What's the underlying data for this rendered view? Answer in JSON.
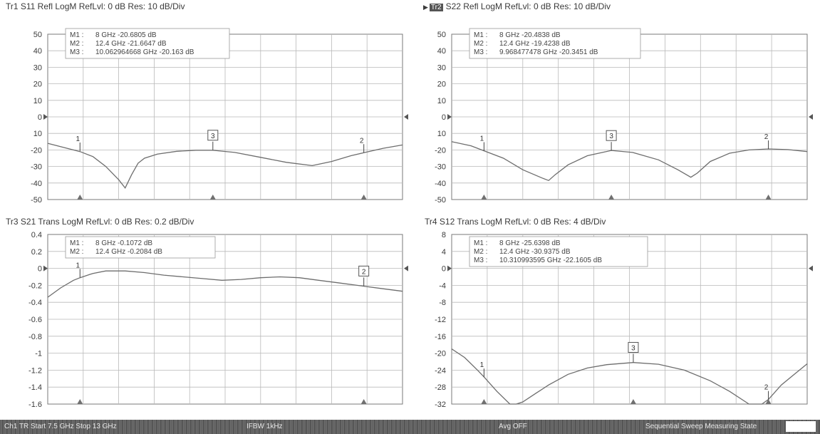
{
  "panels": [
    {
      "id": "tr1",
      "title": "Tr1  S11 Refl LogM RefLvl: 0  dB Res: 10  dB/Div",
      "badge": "",
      "yticks": [
        "50",
        "40",
        "30",
        "20",
        "10",
        "0",
        "10",
        "-20",
        "-30",
        "-40",
        "-50"
      ],
      "markers_readout": [
        {
          "name": "M1",
          "text": "8 GHz -20.6805 dB"
        },
        {
          "name": "M2",
          "text": "12.4 GHz -21.6647 dB"
        },
        {
          "name": "M3",
          "text": "10.062964668 GHz -20.163 dB"
        }
      ]
    },
    {
      "id": "tr2",
      "title": "S22 Refl LogM RefLvl: 0  dB Res: 10  dB/Div",
      "badge": "Tr2",
      "yticks": [
        "50",
        "40",
        "30",
        "20",
        "10",
        "0",
        "10",
        "-20",
        "-30",
        "-40",
        "-50"
      ],
      "markers_readout": [
        {
          "name": "M1",
          "text": "8 GHz -20.4838 dB"
        },
        {
          "name": "M2",
          "text": "12.4 GHz -19.4238 dB"
        },
        {
          "name": "M3",
          "text": "9.968477478 GHz -20.3451 dB"
        }
      ]
    },
    {
      "id": "tr3",
      "title": "Tr3  S21 Trans LogM RefLvl: 0  dB Res: 0.2  dB/Div",
      "badge": "",
      "yticks": [
        "0.4",
        "0.2",
        "0",
        "-0.2",
        "-0.4",
        "-0.6",
        "-0.8",
        "-1",
        "-1.2",
        "-1.4",
        "-1.6"
      ],
      "markers_readout": [
        {
          "name": "M1",
          "text": "8 GHz -0.1072 dB"
        },
        {
          "name": "M2",
          "text": "12.4 GHz -0.2084 dB"
        }
      ]
    },
    {
      "id": "tr4",
      "title": "Tr4  S12 Trans LogM RefLvl: 0  dB Res: 4  dB/Div",
      "badge": "",
      "yticks": [
        "8",
        "4",
        "0",
        "-4",
        "-8",
        "-12",
        "-16",
        "-20",
        "-24",
        "-28",
        "-32"
      ],
      "markers_readout": [
        {
          "name": "M1",
          "text": "8 GHz -25.6398 dB"
        },
        {
          "name": "M2",
          "text": "12.4 GHz -30.9375 dB"
        },
        {
          "name": "M3",
          "text": "10.310993595 GHz -22.1605 dB"
        }
      ]
    }
  ],
  "chart_data": [
    {
      "type": "line",
      "title": "Tr1  S11 Refl LogM RefLvl: 0  dB Res: 10  dB/Div",
      "xlim": [
        7.5,
        13
      ],
      "ylim": [
        -50,
        50
      ],
      "grid": true,
      "series": [
        {
          "x": [
            7.5,
            7.8,
            8,
            8.2,
            8.4,
            8.6,
            8.7,
            8.8,
            8.9,
            9.0,
            9.2,
            9.5,
            9.8,
            10.06,
            10.4,
            10.8,
            11.2,
            11.6,
            11.9,
            12.2,
            12.4,
            12.7,
            13
          ],
          "y": [
            -16,
            -19,
            -21,
            -24,
            -30,
            -38,
            -43,
            -35,
            -28,
            -25,
            -22.5,
            -20.8,
            -20.2,
            -20.2,
            -21.5,
            -24.5,
            -27.5,
            -29.5,
            -27,
            -23.5,
            -21.7,
            -19,
            -17
          ]
        }
      ],
      "markers": [
        {
          "label": "1",
          "x": 8,
          "y": -20.68
        },
        {
          "label": "2",
          "x": 12.4,
          "y": -21.66
        },
        {
          "label": "3",
          "x": 10.06,
          "y": -20.16
        }
      ],
      "stimulus_markers_x": [
        8,
        10.06,
        12.4
      ]
    },
    {
      "type": "line",
      "title": "S22 Refl LogM RefLvl: 0  dB Res: 10  dB/Div",
      "xlim": [
        7.5,
        13
      ],
      "ylim": [
        -50,
        50
      ],
      "grid": true,
      "series": [
        {
          "x": [
            7.5,
            7.8,
            8,
            8.3,
            8.6,
            8.9,
            9.0,
            9.1,
            9.3,
            9.6,
            9.97,
            10.3,
            10.7,
            11.0,
            11.2,
            11.3,
            11.5,
            11.8,
            12.1,
            12.4,
            12.7,
            13
          ],
          "y": [
            -15,
            -17.5,
            -20.5,
            -25,
            -32,
            -37,
            -38.5,
            -35,
            -29,
            -23.5,
            -20.3,
            -21.5,
            -26,
            -32,
            -36.5,
            -34,
            -27,
            -22,
            -20,
            -19.4,
            -19.8,
            -21
          ]
        }
      ],
      "markers": [
        {
          "label": "1",
          "x": 8,
          "y": -20.48
        },
        {
          "label": "2",
          "x": 12.4,
          "y": -19.42
        },
        {
          "label": "3",
          "x": 9.97,
          "y": -20.35
        }
      ],
      "stimulus_markers_x": [
        8,
        9.97,
        12.4
      ]
    },
    {
      "type": "line",
      "title": "Tr3  S21 Trans LogM RefLvl: 0  dB Res: 0.2  dB/Div",
      "xlim": [
        7.5,
        13
      ],
      "ylim": [
        -1.6,
        0.4
      ],
      "grid": true,
      "series": [
        {
          "x": [
            7.5,
            7.7,
            7.9,
            8,
            8.2,
            8.4,
            8.7,
            9.0,
            9.3,
            9.6,
            9.9,
            10.2,
            10.5,
            10.8,
            11.1,
            11.4,
            11.7,
            12.0,
            12.4,
            12.7,
            13
          ],
          "y": [
            -0.34,
            -0.23,
            -0.14,
            -0.11,
            -0.06,
            -0.03,
            -0.03,
            -0.05,
            -0.08,
            -0.1,
            -0.12,
            -0.14,
            -0.13,
            -0.11,
            -0.1,
            -0.11,
            -0.14,
            -0.17,
            -0.21,
            -0.24,
            -0.27
          ]
        }
      ],
      "markers": [
        {
          "label": "1",
          "x": 8,
          "y": -0.107
        },
        {
          "label": "2",
          "x": 12.4,
          "y": -0.208
        }
      ],
      "stimulus_markers_x": [
        8,
        12.4
      ]
    },
    {
      "type": "line",
      "title": "Tr4  S12 Trans LogM RefLvl: 0  dB Res: 4  dB/Div",
      "xlim": [
        7.5,
        13
      ],
      "ylim": [
        -32,
        8
      ],
      "grid": true,
      "series": [
        {
          "x": [
            7.5,
            7.7,
            7.9,
            8,
            8.2,
            8.4,
            8.5,
            8.6,
            8.8,
            9.0,
            9.3,
            9.6,
            9.9,
            10.31,
            10.7,
            11.1,
            11.5,
            11.8,
            12.1,
            12.3,
            12.4,
            12.6,
            12.8,
            13
          ],
          "y": [
            -19,
            -21,
            -24,
            -25.6,
            -29,
            -32,
            -32,
            -31.5,
            -29.5,
            -27.5,
            -25,
            -23.5,
            -22.7,
            -22.2,
            -22.6,
            -24,
            -26.5,
            -29,
            -32,
            -32,
            -30.9,
            -27.5,
            -25,
            -22.5
          ]
        }
      ],
      "markers": [
        {
          "label": "1",
          "x": 8,
          "y": -25.64
        },
        {
          "label": "2",
          "x": 12.4,
          "y": -30.94
        },
        {
          "label": "3",
          "x": 10.31,
          "y": -22.16
        }
      ],
      "stimulus_markers_x": [
        8,
        10.31,
        12.4
      ]
    }
  ],
  "statusbar": {
    "left": "Ch1  TR  Start 7.5 GHz     Stop 13 GHz",
    "ifbw": "IFBW 1kHz",
    "avg": "Avg OFF",
    "right": "Sequential Sweep Measuring State"
  },
  "colors": {
    "trace": "#6d6d6d",
    "grid": "#b9b9b9",
    "frame": "#7a7a7a",
    "text": "#3a3a3a"
  }
}
